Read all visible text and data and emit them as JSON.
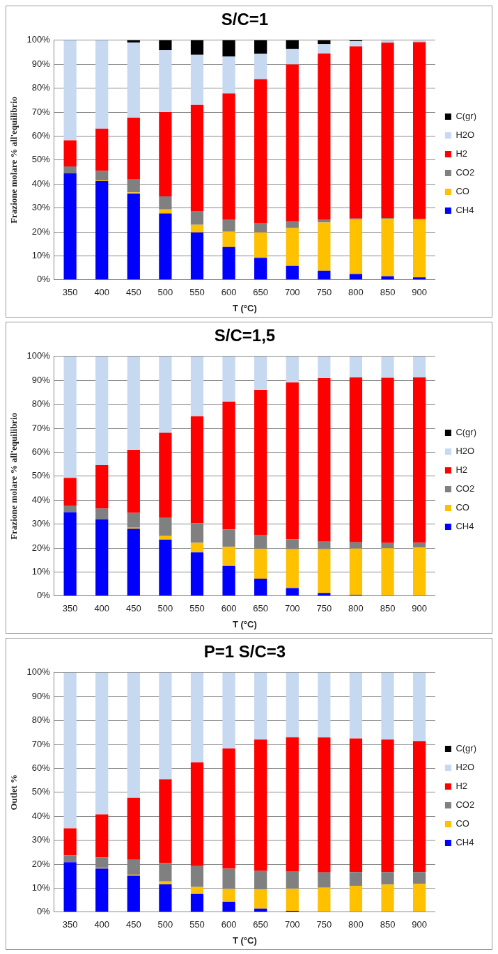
{
  "chart_data": [
    {
      "type": "bar",
      "title": "S/C=1",
      "xlabel": "T (°C)",
      "ylabel": "Frazione molare % all'equilibrio",
      "stacked": true,
      "grid": "y",
      "legend": "right",
      "categories": [
        "350",
        "400",
        "450",
        "500",
        "550",
        "600",
        "650",
        "700",
        "750",
        "800",
        "850",
        "900"
      ],
      "ylim": [
        0,
        100
      ],
      "yticks": [
        {
          "value": 0,
          "label": "0%"
        },
        {
          "value": 10,
          "label": "10%"
        },
        {
          "value": 20,
          "label": "20%"
        },
        {
          "value": 30,
          "label": "30%"
        },
        {
          "value": 40,
          "label": "40%"
        },
        {
          "value": 50,
          "label": "50%"
        },
        {
          "value": 60,
          "label": "60%"
        },
        {
          "value": 70,
          "label": "70%"
        },
        {
          "value": 80,
          "label": "80%"
        },
        {
          "value": 90,
          "label": "90%"
        },
        {
          "value": 100,
          "label": "100%"
        }
      ],
      "series": [
        {
          "name": "CH4",
          "color": "#0000ff",
          "values": [
            44.5,
            41.2,
            36.0,
            27.7,
            19.8,
            13.7,
            9.2,
            5.8,
            3.8,
            2.4,
            1.5,
            1.0
          ]
        },
        {
          "name": "CO",
          "color": "#ffc000",
          "values": [
            0,
            0.3,
            0.5,
            1.7,
            3.2,
            6.4,
            10.6,
            15.8,
            20.1,
            22.8,
            24.0,
            24.3
          ]
        },
        {
          "name": "CO2",
          "color": "#808080",
          "values": [
            2.8,
            4.0,
            5.4,
            5.4,
            5.7,
            4.9,
            4.0,
            2.7,
            1.1,
            0.4,
            0.3,
            null
          ]
        },
        {
          "name": "H2",
          "color": "#ff0000",
          "values": [
            10.9,
            17.6,
            25.8,
            35.2,
            44.3,
            52.8,
            59.9,
            65.6,
            69.5,
            71.9,
            73.2,
            73.9
          ]
        },
        {
          "name": "H2O",
          "color": "#c6d9f1",
          "values": [
            41.8,
            36.9,
            31.4,
            25.9,
            20.9,
            15.4,
            10.7,
            6.5,
            3.9,
            2.1,
            1.0,
            0.7
          ]
        },
        {
          "name": "C(gr)",
          "color": "#000000",
          "values": [
            0,
            0,
            0.9,
            4.1,
            6.1,
            6.8,
            5.6,
            3.6,
            1.6,
            0.4,
            0,
            0
          ]
        }
      ]
    },
    {
      "type": "bar",
      "title": "S/C=1,5",
      "xlabel": "T (°C)",
      "ylabel": "Frazione molare % all'equilibrio",
      "stacked": true,
      "grid": "y",
      "legend": "right",
      "categories": [
        "350",
        "400",
        "450",
        "500",
        "550",
        "600",
        "650",
        "700",
        "750",
        "800",
        "850",
        "900"
      ],
      "ylim": [
        0,
        100
      ],
      "yticks": [
        {
          "value": 0,
          "label": "0%"
        },
        {
          "value": 10,
          "label": "10%"
        },
        {
          "value": 20,
          "label": "20%"
        },
        {
          "value": 30,
          "label": "30%"
        },
        {
          "value": 40,
          "label": "40%"
        },
        {
          "value": 50,
          "label": "50%"
        },
        {
          "value": 60,
          "label": "60%"
        },
        {
          "value": 70,
          "label": "70%"
        },
        {
          "value": 80,
          "label": "80%"
        },
        {
          "value": 90,
          "label": "90%"
        },
        {
          "value": 100,
          "label": "100%"
        }
      ],
      "series": [
        {
          "name": "CH4",
          "color": "#0000ff",
          "values": [
            35.0,
            32.0,
            28.1,
            23.5,
            18.2,
            12.5,
            7.2,
            3.3,
            1.2,
            0.4,
            null,
            0
          ]
        },
        {
          "name": "CO",
          "color": "#ffc000",
          "values": [
            0,
            0,
            0.4,
            1.5,
            4.0,
            8.0,
            12.5,
            16.2,
            18.3,
            19.4,
            19.9,
            20.3
          ]
        },
        {
          "name": "CO2",
          "color": "#808080",
          "values": [
            2.7,
            4.5,
            6.2,
            7.6,
            8.1,
            7.3,
            5.8,
            4.2,
            3.2,
            2.6,
            2.2,
            1.9
          ]
        },
        {
          "name": "H2",
          "color": "#ff0000",
          "values": [
            11.6,
            18.1,
            26.3,
            35.5,
            44.7,
            53.3,
            60.5,
            65.4,
            68.2,
            68.8,
            69.0,
            69.0
          ]
        },
        {
          "name": "H2O",
          "color": "#c6d9f1",
          "values": [
            50.7,
            45.4,
            39.0,
            31.9,
            25.0,
            18.9,
            14.0,
            10.9,
            9.1,
            8.8,
            8.8,
            8.8
          ]
        },
        {
          "name": "C(gr)",
          "color": "#000000",
          "values": [
            0,
            0,
            0,
            0,
            0,
            0,
            0,
            0,
            0,
            0,
            0,
            0
          ]
        }
      ]
    },
    {
      "type": "bar",
      "title": "P=1 S/C=3",
      "xlabel": "T (°C)",
      "ylabel": "Outlet %",
      "stacked": true,
      "grid": "y",
      "legend": "right",
      "categories": [
        "350",
        "400",
        "450",
        "500",
        "550",
        "600",
        "650",
        "700",
        "750",
        "800",
        "850",
        "900"
      ],
      "ylim": [
        0,
        100
      ],
      "yticks": [
        {
          "value": 0,
          "label": "0%"
        },
        {
          "value": 10,
          "label": "10%"
        },
        {
          "value": 20,
          "label": "20%"
        },
        {
          "value": 30,
          "label": "30%"
        },
        {
          "value": 40,
          "label": "40%"
        },
        {
          "value": 50,
          "label": "50%"
        },
        {
          "value": 60,
          "label": "60%"
        },
        {
          "value": 70,
          "label": "70%"
        },
        {
          "value": 80,
          "label": "80%"
        },
        {
          "value": 90,
          "label": "90%"
        },
        {
          "value": 100,
          "label": "100%"
        }
      ],
      "series": [
        {
          "name": "CH4",
          "color": "#0000ff",
          "values": [
            20.8,
            18.2,
            15.2,
            11.6,
            7.6,
            4.3,
            1.5,
            0.5,
            null,
            0,
            0,
            0
          ]
        },
        {
          "name": "CO",
          "color": "#ffc000",
          "values": [
            0,
            0.3,
            0.4,
            1.2,
            2.9,
            5.3,
            7.9,
            9.2,
            10.2,
            11.0,
            11.5,
            11.8
          ]
        },
        {
          "name": "CO2",
          "color": "#808080",
          "values": [
            2.8,
            4.3,
            6.2,
            7.7,
            8.7,
            8.5,
            7.8,
            7.2,
            6.4,
            5.7,
            5.2,
            4.9
          ]
        },
        {
          "name": "H2",
          "color": "#ff0000",
          "values": [
            11.4,
            18.0,
            25.9,
            34.9,
            43.3,
            50.2,
            54.8,
            56.1,
            56.3,
            55.8,
            55.3,
            54.7
          ]
        },
        {
          "name": "H2O",
          "color": "#c6d9f1",
          "values": [
            65.0,
            59.2,
            52.3,
            44.6,
            37.5,
            31.7,
            28.0,
            27.0,
            27.0,
            27.5,
            28.0,
            28.6
          ]
        },
        {
          "name": "C(gr)",
          "color": "#000000",
          "values": [
            0,
            0,
            0,
            0,
            0,
            0,
            0,
            0,
            0,
            0,
            0,
            0
          ]
        }
      ]
    }
  ]
}
